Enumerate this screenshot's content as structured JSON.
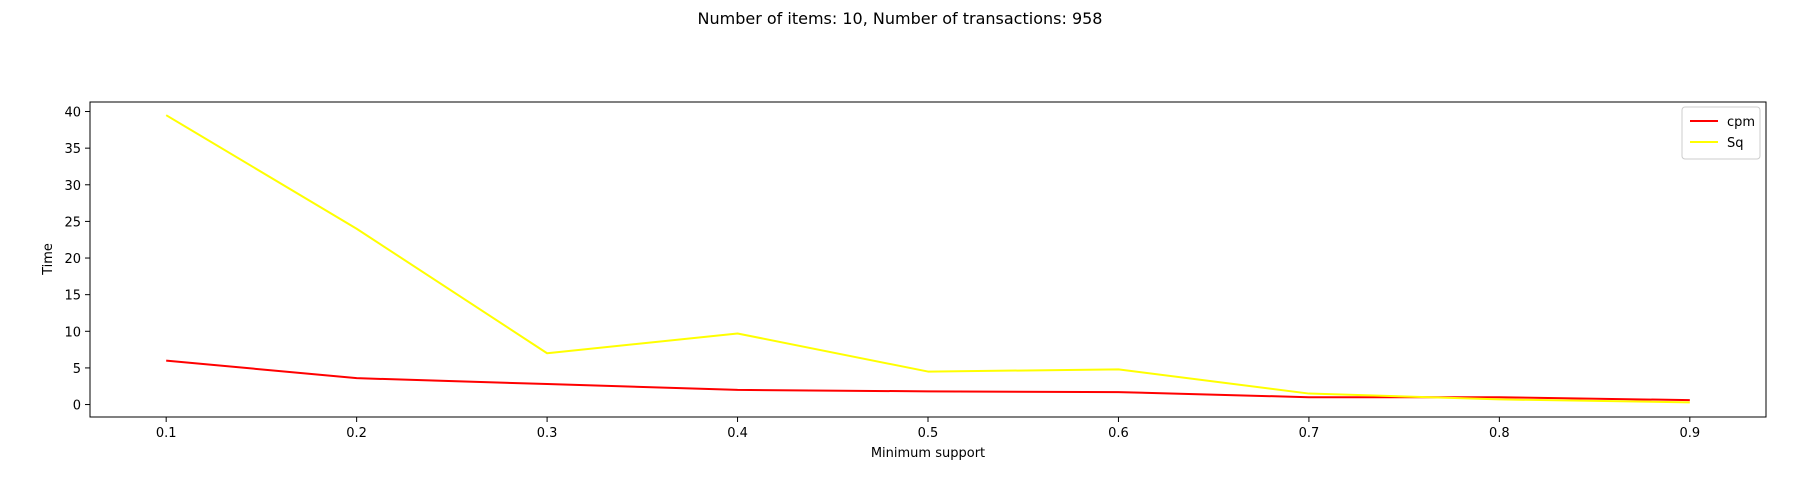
{
  "chart_data": {
    "type": "line",
    "title": "Number of items: 10, Number of transactions: 958",
    "xlabel": "Minimum support",
    "ylabel": "Time",
    "x": [
      0.1,
      0.2,
      0.3,
      0.4,
      0.5,
      0.6,
      0.7,
      0.8,
      0.9
    ],
    "x_tick_labels": [
      "0.1",
      "0.2",
      "0.3",
      "0.4",
      "0.5",
      "0.6",
      "0.7",
      "0.8",
      "0.9"
    ],
    "xlim": [
      0.06,
      0.94
    ],
    "y_ticks": [
      0,
      5,
      10,
      15,
      20,
      25,
      30,
      35,
      40
    ],
    "y_tick_labels": [
      "0",
      "5",
      "10",
      "15",
      "20",
      "25",
      "30",
      "35",
      "40"
    ],
    "ylim": [
      -1.7,
      41.3
    ],
    "grid": false,
    "legend_position": "top-right",
    "series": [
      {
        "name": "cpm",
        "color": "#ff0000",
        "values": [
          6.0,
          3.6,
          2.8,
          2.0,
          1.8,
          1.7,
          1.0,
          1.0,
          0.6
        ]
      },
      {
        "name": "Sq",
        "color": "#ffff00",
        "values": [
          39.5,
          24.0,
          7.0,
          9.7,
          4.5,
          4.8,
          1.5,
          0.7,
          0.3
        ]
      }
    ]
  }
}
